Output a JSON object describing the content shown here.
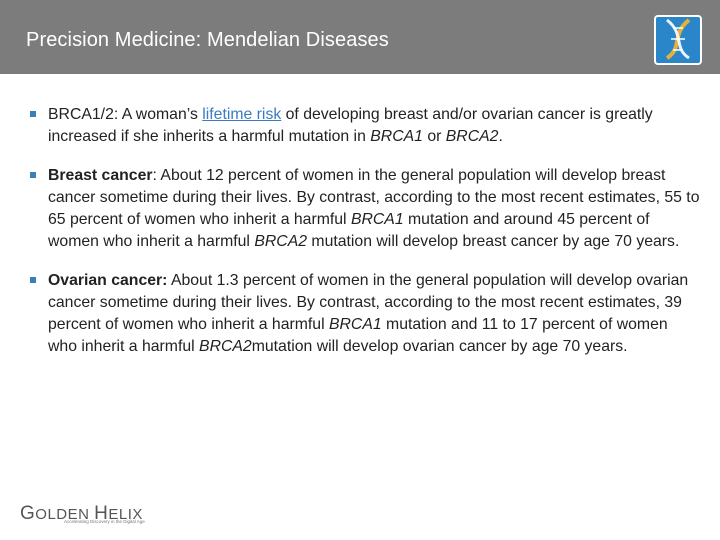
{
  "slide": {
    "title": "Precision Medicine: Mendelian Diseases"
  },
  "paragraphs": [
    {
      "lead": "BRCA1/2: A woman’s ",
      "link": "lifetime risk",
      "rest_1": " of developing breast and/or ovarian cancer is greatly increased if she inherits a harmful mutation in ",
      "gene_1": "BRCA1",
      "rest_2": " or ",
      "gene_2": "BRCA2",
      "rest_3": "."
    },
    {
      "heading": "Breast cancer",
      "text_1": ": About 12 percent of women in the general population will develop breast cancer sometime during their lives. By contrast, according to the most recent estimates, 55 to 65 percent of women who inherit a harmful ",
      "gene_1": "BRCA1",
      "text_2": " mutation and around 45 percent of women who inherit a harmful ",
      "gene_2": "BRCA2",
      "text_3": " mutation will develop breast cancer by age 70 years."
    },
    {
      "heading": "Ovarian cancer:",
      "text_1": " About 1.3 percent of women in the general population will develop ovarian cancer sometime during their lives. By contrast, according to the most recent estimates, 39 percent of women who inherit a harmful ",
      "gene_1": "BRCA1",
      "text_2": " mutation and 11 to 17 percent of women who inherit a harmful ",
      "gene_2": "BRCA2",
      "text_3": "mutation will develop ovarian cancer by age 70 years."
    }
  ],
  "footer": {
    "logo_g": "G",
    "logo_olden": "OLDEN ",
    "logo_h": "H",
    "logo_elix": "ELIX",
    "tagline": "Accelerating Discovery in the Digital Age"
  },
  "icons": {
    "helix_badge": "dna-helix-icon",
    "bullet": "square-bullet-icon"
  },
  "colors": {
    "header_bg": "#7c7c7c",
    "bullet": "#3a7fb5",
    "link": "#3b7bbf",
    "badge_blue": "#2a86c8"
  }
}
